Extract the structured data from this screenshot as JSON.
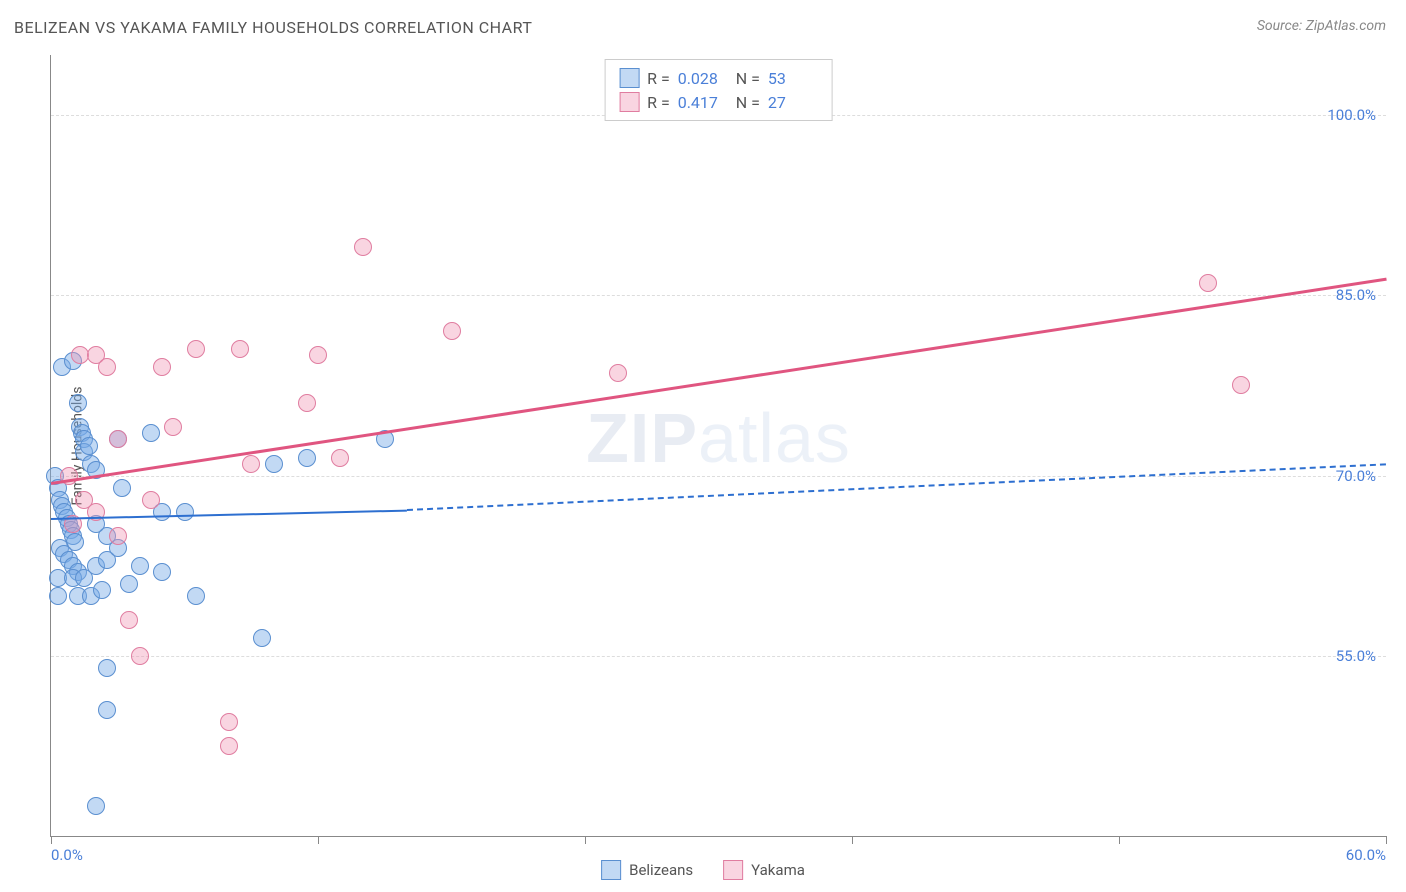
{
  "chart": {
    "title": "BELIZEAN VS YAKAMA FAMILY HOUSEHOLDS CORRELATION CHART",
    "source_label": "Source: ZipAtlas.com",
    "ylabel": "Family Households",
    "watermark_bold": "ZIP",
    "watermark_rest": "atlas",
    "type": "scatter",
    "background_color": "#ffffff",
    "grid_color": "#dddddd",
    "axis_color": "#888888",
    "tick_label_color": "#4a7fd8",
    "xlim": [
      0,
      60
    ],
    "ylim": [
      40,
      105
    ],
    "xtick_labels": {
      "left": "0.0%",
      "right": "60.0%"
    },
    "xtick_positions_pct": [
      0,
      20,
      40,
      60,
      80,
      100
    ],
    "y_gridlines": [
      {
        "value": 55.0,
        "label": "55.0%"
      },
      {
        "value": 70.0,
        "label": "70.0%"
      },
      {
        "value": 85.0,
        "label": "85.0%"
      },
      {
        "value": 100.0,
        "label": "100.0%"
      }
    ],
    "series": [
      {
        "name": "Belizeans",
        "legend_label": "Belizeans",
        "fill_color": "rgba(120,170,230,0.45)",
        "stroke_color": "#5a8fd0",
        "marker_radius": 9,
        "R_label": "R =",
        "R_value": "0.028",
        "N_label": "N =",
        "N_value": "53",
        "trend": {
          "color": "#2d6fd0",
          "line_width": 2,
          "solid": {
            "x1": 0,
            "y1": 66.5,
            "x2": 16,
            "y2": 67.2
          },
          "dashed": {
            "x1": 16,
            "y1": 67.2,
            "x2": 60,
            "y2": 71.0
          }
        },
        "points": [
          {
            "x": 0.5,
            "y": 79
          },
          {
            "x": 1.0,
            "y": 79.5
          },
          {
            "x": 1.2,
            "y": 76
          },
          {
            "x": 1.3,
            "y": 74
          },
          {
            "x": 1.4,
            "y": 73.5
          },
          {
            "x": 1.5,
            "y": 73
          },
          {
            "x": 1.5,
            "y": 72
          },
          {
            "x": 1.7,
            "y": 72.5
          },
          {
            "x": 1.8,
            "y": 71
          },
          {
            "x": 2.0,
            "y": 70.5
          },
          {
            "x": 0.2,
            "y": 70
          },
          {
            "x": 0.3,
            "y": 69
          },
          {
            "x": 0.4,
            "y": 68
          },
          {
            "x": 0.5,
            "y": 67.5
          },
          {
            "x": 0.6,
            "y": 67
          },
          {
            "x": 0.7,
            "y": 66.5
          },
          {
            "x": 0.8,
            "y": 66
          },
          {
            "x": 0.9,
            "y": 65.5
          },
          {
            "x": 1.0,
            "y": 65
          },
          {
            "x": 1.1,
            "y": 64.5
          },
          {
            "x": 0.4,
            "y": 64
          },
          {
            "x": 0.6,
            "y": 63.5
          },
          {
            "x": 0.8,
            "y": 63
          },
          {
            "x": 1.0,
            "y": 62.5
          },
          {
            "x": 1.2,
            "y": 62
          },
          {
            "x": 0.3,
            "y": 61.5
          },
          {
            "x": 1.0,
            "y": 61.5
          },
          {
            "x": 1.5,
            "y": 61.5
          },
          {
            "x": 2.0,
            "y": 62.5
          },
          {
            "x": 2.5,
            "y": 63
          },
          {
            "x": 0.3,
            "y": 60
          },
          {
            "x": 1.2,
            "y": 60
          },
          {
            "x": 1.8,
            "y": 60
          },
          {
            "x": 2.3,
            "y": 60.5
          },
          {
            "x": 3.5,
            "y": 61
          },
          {
            "x": 3.0,
            "y": 73
          },
          {
            "x": 4.5,
            "y": 73.5
          },
          {
            "x": 3.2,
            "y": 69
          },
          {
            "x": 5.0,
            "y": 67
          },
          {
            "x": 6.0,
            "y": 67
          },
          {
            "x": 5.0,
            "y": 62
          },
          {
            "x": 4.0,
            "y": 62.5
          },
          {
            "x": 3.0,
            "y": 64
          },
          {
            "x": 2.5,
            "y": 65
          },
          {
            "x": 2.0,
            "y": 66
          },
          {
            "x": 10.0,
            "y": 71
          },
          {
            "x": 11.5,
            "y": 71.5
          },
          {
            "x": 15.0,
            "y": 73
          },
          {
            "x": 9.5,
            "y": 56.5
          },
          {
            "x": 2.5,
            "y": 54
          },
          {
            "x": 2.5,
            "y": 50.5
          },
          {
            "x": 2.0,
            "y": 42.5
          },
          {
            "x": 6.5,
            "y": 60
          }
        ]
      },
      {
        "name": "Yakama",
        "legend_label": "Yakama",
        "fill_color": "rgba(240,150,180,0.40)",
        "stroke_color": "#e07da0",
        "marker_radius": 9,
        "R_label": "R =",
        "R_value": "0.417",
        "N_label": "N =",
        "N_value": "27",
        "trend": {
          "color": "#e05580",
          "line_width": 2.5,
          "solid": {
            "x1": 0,
            "y1": 69.5,
            "x2": 60,
            "y2": 86.5
          },
          "dashed": null
        },
        "points": [
          {
            "x": 1.3,
            "y": 80
          },
          {
            "x": 2.0,
            "y": 80
          },
          {
            "x": 3.0,
            "y": 73
          },
          {
            "x": 4.5,
            "y": 68
          },
          {
            "x": 5.0,
            "y": 79
          },
          {
            "x": 5.5,
            "y": 74
          },
          {
            "x": 6.5,
            "y": 80.5
          },
          {
            "x": 8.5,
            "y": 80.5
          },
          {
            "x": 9.0,
            "y": 71
          },
          {
            "x": 12.0,
            "y": 80
          },
          {
            "x": 13.0,
            "y": 71.5
          },
          {
            "x": 14.0,
            "y": 89
          },
          {
            "x": 11.5,
            "y": 76
          },
          {
            "x": 18.0,
            "y": 82
          },
          {
            "x": 25.5,
            "y": 78.5
          },
          {
            "x": 3.0,
            "y": 65
          },
          {
            "x": 1.5,
            "y": 68
          },
          {
            "x": 2.0,
            "y": 67
          },
          {
            "x": 0.8,
            "y": 70
          },
          {
            "x": 1.0,
            "y": 66
          },
          {
            "x": 3.5,
            "y": 58
          },
          {
            "x": 4.0,
            "y": 55
          },
          {
            "x": 8.0,
            "y": 47.5
          },
          {
            "x": 8.0,
            "y": 49.5
          },
          {
            "x": 52.0,
            "y": 86
          },
          {
            "x": 53.5,
            "y": 77.5
          },
          {
            "x": 2.5,
            "y": 79
          }
        ]
      }
    ]
  }
}
